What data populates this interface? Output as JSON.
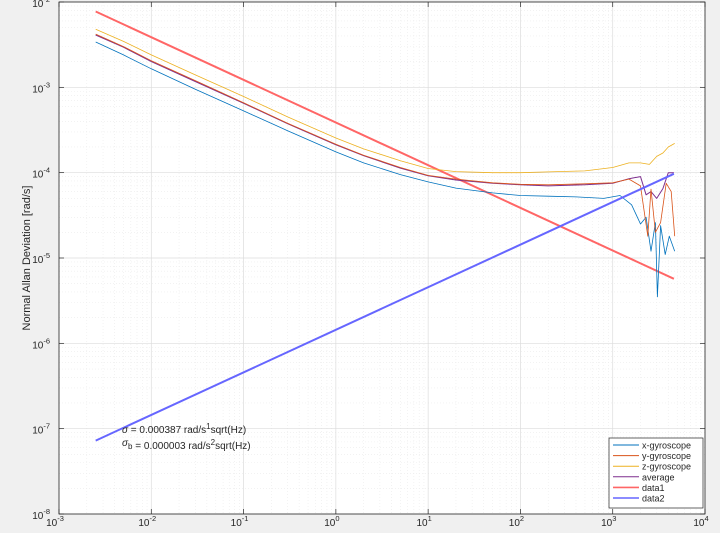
{
  "chart_data": {
    "type": "line",
    "xscale": "log",
    "yscale": "log",
    "xlim": [
      0.001,
      10000
    ],
    "ylim": [
      1e-08,
      0.01
    ],
    "grid": true,
    "minor_grid": true,
    "xlabel": "",
    "ylabel": "Normal Allan Deviation [rad/s]",
    "x_ticks": [
      "10^-3",
      "10^-2",
      "10^-1",
      "10^0",
      "10^1",
      "10^2",
      "10^3",
      "10^4"
    ],
    "y_ticks": [
      "10^-8",
      "10^-7",
      "10^-6",
      "10^-5",
      "10^-4",
      "10^-3",
      "10^-2"
    ],
    "legend_position": "bottom-right",
    "colors": {
      "x": "#0072bd",
      "y": "#d95319",
      "z": "#edb120",
      "average": "#7e2f8e",
      "data1": "#ff6666",
      "data2": "#6666ff"
    },
    "series": [
      {
        "name": "x-gyroscope",
        "color": "#0072bd",
        "width": 0.8,
        "points": [
          [
            0.0025,
            0.0034
          ],
          [
            0.005,
            0.0024
          ],
          [
            0.01,
            0.00165
          ],
          [
            0.03,
            0.00095
          ],
          [
            0.1,
            0.00053
          ],
          [
            0.3,
            0.00031
          ],
          [
            1,
            0.000175
          ],
          [
            2,
            0.00013
          ],
          [
            5,
            9.5e-05
          ],
          [
            10,
            7.8e-05
          ],
          [
            20,
            6.6e-05
          ],
          [
            50,
            5.8e-05
          ],
          [
            100,
            5.4e-05
          ],
          [
            200,
            5.3e-05
          ],
          [
            400,
            5.2e-05
          ],
          [
            800,
            5e-05
          ],
          [
            1200,
            5.4e-05
          ],
          [
            1600,
            4.2e-05
          ],
          [
            2000,
            2.5e-05
          ],
          [
            2300,
            3e-05
          ],
          [
            2600,
            1.2e-05
          ],
          [
            2900,
            2.6e-05
          ],
          [
            3050,
            3.5e-06
          ],
          [
            3300,
            2.4e-05
          ],
          [
            3700,
            1.1e-05
          ],
          [
            4100,
            1.8e-05
          ],
          [
            4700,
            1.2e-05
          ]
        ]
      },
      {
        "name": "y-gyroscope",
        "color": "#d95319",
        "width": 0.8,
        "points": [
          [
            0.0025,
            0.0042
          ],
          [
            0.005,
            0.003
          ],
          [
            0.01,
            0.00205
          ],
          [
            0.03,
            0.0012
          ],
          [
            0.1,
            0.00066
          ],
          [
            0.3,
            0.00038
          ],
          [
            1,
            0.000215
          ],
          [
            2,
            0.00016
          ],
          [
            5,
            0.000115
          ],
          [
            10,
            9.3e-05
          ],
          [
            20,
            8.4e-05
          ],
          [
            50,
            7.6e-05
          ],
          [
            100,
            7.3e-05
          ],
          [
            200,
            7.2e-05
          ],
          [
            500,
            7.4e-05
          ],
          [
            1000,
            7.6e-05
          ],
          [
            1500,
            8.4e-05
          ],
          [
            2000,
            7e-05
          ],
          [
            2400,
            1.8e-05
          ],
          [
            2600,
            6.4e-05
          ],
          [
            2900,
            2e-05
          ],
          [
            3300,
            2.6e-05
          ],
          [
            3800,
            7.5e-05
          ],
          [
            4300,
            6e-05
          ],
          [
            4700,
            1.8e-05
          ]
        ]
      },
      {
        "name": "z-gyroscope",
        "color": "#edb120",
        "width": 0.8,
        "points": [
          [
            0.0025,
            0.0048
          ],
          [
            0.005,
            0.00345
          ],
          [
            0.01,
            0.0024
          ],
          [
            0.03,
            0.0014
          ],
          [
            0.1,
            0.00078
          ],
          [
            0.3,
            0.00045
          ],
          [
            1,
            0.000255
          ],
          [
            2,
            0.00019
          ],
          [
            5,
            0.000138
          ],
          [
            10,
            0.000112
          ],
          [
            20,
            0.000103
          ],
          [
            50,
            0.0001
          ],
          [
            100,
            0.0001
          ],
          [
            200,
            0.000102
          ],
          [
            500,
            0.000105
          ],
          [
            1000,
            0.000115
          ],
          [
            1500,
            0.00013
          ],
          [
            2000,
            0.00013
          ],
          [
            2500,
            0.000125
          ],
          [
            3000,
            0.000155
          ],
          [
            3500,
            0.00017
          ],
          [
            4000,
            0.0002
          ],
          [
            4700,
            0.00022
          ]
        ]
      },
      {
        "name": "average",
        "color": "#7e2f8e",
        "width": 1.0,
        "points": [
          [
            0.0025,
            0.0041
          ],
          [
            0.005,
            0.00295
          ],
          [
            0.01,
            0.002
          ],
          [
            0.03,
            0.00117
          ],
          [
            0.1,
            0.00065
          ],
          [
            0.3,
            0.000375
          ],
          [
            1,
            0.000212
          ],
          [
            2,
            0.000158
          ],
          [
            5,
            0.000113
          ],
          [
            10,
            9.2e-05
          ],
          [
            20,
            8.2e-05
          ],
          [
            50,
            7.5e-05
          ],
          [
            100,
            7.2e-05
          ],
          [
            200,
            7e-05
          ],
          [
            500,
            7.2e-05
          ],
          [
            1000,
            7.5e-05
          ],
          [
            1500,
            8.5e-05
          ],
          [
            2000,
            9e-05
          ],
          [
            2300,
            5.5e-05
          ],
          [
            2600,
            6e-05
          ],
          [
            3000,
            5e-05
          ],
          [
            3500,
            6.5e-05
          ],
          [
            4000,
            0.0001
          ],
          [
            4600,
            0.0001
          ]
        ]
      },
      {
        "name": "data1",
        "color": "#ff6666",
        "width": 2.0,
        "points": [
          [
            0.0025,
            0.007744
          ],
          [
            4600,
            5.708e-06
          ]
        ]
      },
      {
        "name": "data2",
        "color": "#6666ff",
        "width": 2.0,
        "points": [
          [
            0.0025,
            7.24e-08
          ],
          [
            4600,
            9.71e-05
          ]
        ]
      }
    ],
    "annotations": [
      {
        "base": "σ",
        "text": " = 0.000387 rad/s",
        "sup": "1",
        "tail": "sqrt(Hz)"
      },
      {
        "base": "σ",
        "sub": "b",
        "text": " = 0.000003 rad/s",
        "sup": "2",
        "tail": "sqrt(Hz)"
      }
    ]
  }
}
